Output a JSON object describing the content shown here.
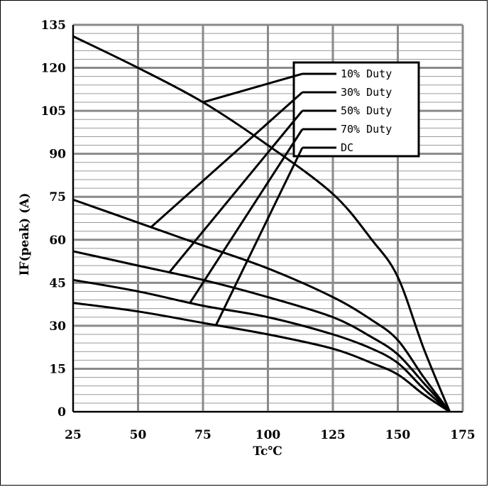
{
  "chart_data": {
    "type": "line",
    "xlabel": "Tc℃",
    "ylabel": "IF(peak) (A)",
    "xlim": [
      25,
      175
    ],
    "ylim": [
      0,
      135
    ],
    "x_ticks": [
      "25",
      "50",
      "75",
      "100",
      "125",
      "150",
      "175"
    ],
    "y_ticks": [
      "0",
      "15",
      "30",
      "45",
      "60",
      "75",
      "90",
      "105",
      "120",
      "135"
    ],
    "grid": true,
    "legend_position": "top-right",
    "series": [
      {
        "name": "10% Duty",
        "x": [
          25,
          50,
          75,
          100,
          125,
          140,
          150,
          160,
          170
        ],
        "y": [
          131,
          120,
          108,
          93,
          76,
          60,
          47,
          22,
          0
        ]
      },
      {
        "name": "30% Duty",
        "x": [
          25,
          50,
          75,
          100,
          125,
          140,
          150,
          160,
          170
        ],
        "y": [
          74,
          66,
          58,
          50,
          40,
          32,
          25,
          12,
          0
        ]
      },
      {
        "name": "50% Duty",
        "x": [
          25,
          50,
          75,
          100,
          125,
          140,
          150,
          160,
          170
        ],
        "y": [
          56,
          51,
          46,
          40,
          33,
          26,
          20,
          10,
          0
        ]
      },
      {
        "name": "70% Duty",
        "x": [
          25,
          50,
          75,
          100,
          125,
          140,
          150,
          160,
          170
        ],
        "y": [
          46,
          42,
          37,
          33,
          27,
          22,
          17,
          8,
          0
        ]
      },
      {
        "name": "DC",
        "x": [
          25,
          50,
          75,
          100,
          125,
          140,
          150,
          160,
          170
        ],
        "y": [
          38,
          35,
          31,
          27,
          22,
          17,
          13,
          6,
          0
        ]
      }
    ]
  }
}
